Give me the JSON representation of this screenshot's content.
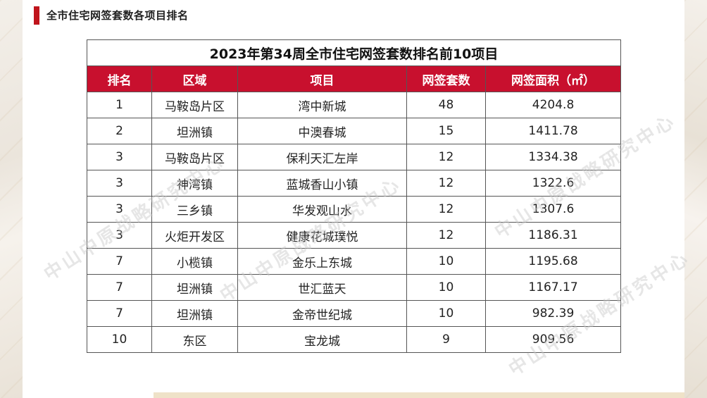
{
  "header": {
    "title": "全市住宅网签套数各项目排名"
  },
  "table": {
    "title": "2023年第34周全市住宅网签套数排名前10项目",
    "columns": [
      "排名",
      "区域",
      "项目",
      "网签套数",
      "网签面积（㎡）"
    ],
    "rows": [
      [
        "1",
        "马鞍岛片区",
        "湾中新城",
        "48",
        "4204.8"
      ],
      [
        "2",
        "坦洲镇",
        "中澳春城",
        "15",
        "1411.78"
      ],
      [
        "3",
        "马鞍岛片区",
        "保利天汇左岸",
        "12",
        "1334.38"
      ],
      [
        "3",
        "神湾镇",
        "蓝城香山小镇",
        "12",
        "1322.6"
      ],
      [
        "3",
        "三乡镇",
        "华发观山水",
        "12",
        "1307.6"
      ],
      [
        "3",
        "火炬开发区",
        "健康花城璞悦",
        "12",
        "1186.31"
      ],
      [
        "7",
        "小榄镇",
        "金乐上东城",
        "10",
        "1195.68"
      ],
      [
        "7",
        "坦洲镇",
        "世汇蓝天",
        "10",
        "1167.17"
      ],
      [
        "7",
        "坦洲镇",
        "金帝世纪城",
        "10",
        "982.39"
      ],
      [
        "10",
        "东区",
        "宝龙城",
        "9",
        "909.56"
      ]
    ]
  },
  "watermark": {
    "text": "中山中原战略研究中心"
  },
  "colors": {
    "accent": "#c0141c",
    "header_row": "#c8102e"
  }
}
